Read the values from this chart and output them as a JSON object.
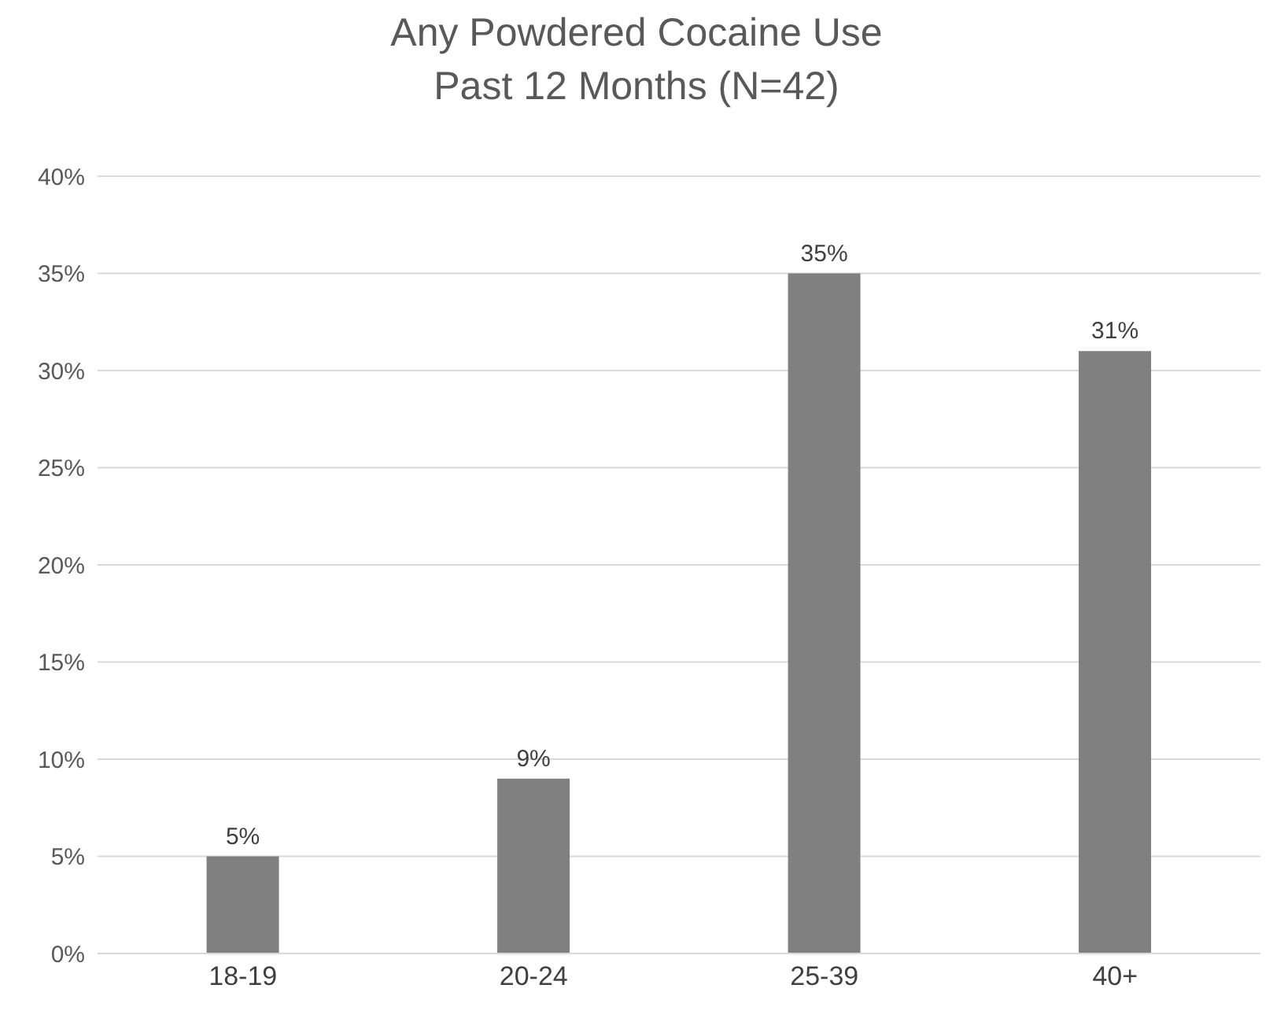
{
  "chart_data": {
    "type": "bar",
    "title": "Any Powdered Cocaine Use",
    "subtitle": "Past 12 Months (N=42)",
    "categories": [
      "18-19",
      "20-24",
      "25-39",
      "40+"
    ],
    "values": [
      5,
      9,
      35,
      31
    ],
    "value_labels": [
      "5%",
      "9%",
      "35%",
      "31%"
    ],
    "color": "#808080",
    "ylim": [
      0,
      40
    ],
    "yticks": [
      {
        "value": 0,
        "label": "0%"
      },
      {
        "value": 5,
        "label": "5%"
      },
      {
        "value": 10,
        "label": "10%"
      },
      {
        "value": 15,
        "label": "15%"
      },
      {
        "value": 20,
        "label": "20%"
      },
      {
        "value": 25,
        "label": "25%"
      },
      {
        "value": 30,
        "label": "30%"
      },
      {
        "value": 35,
        "label": "35%"
      },
      {
        "value": 40,
        "label": "40%"
      }
    ],
    "grid": "y"
  }
}
